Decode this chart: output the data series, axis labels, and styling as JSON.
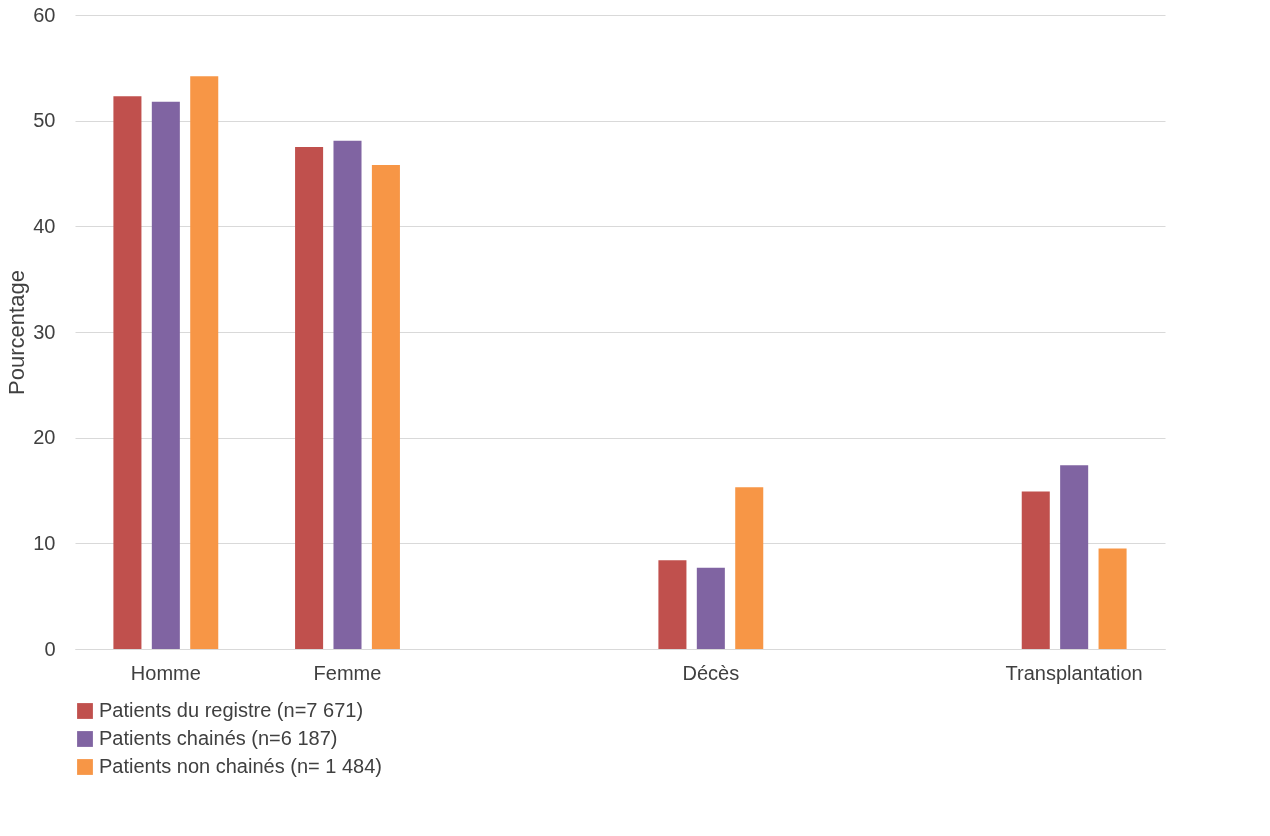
{
  "chart_data": {
    "type": "bar",
    "ylabel": "Pourcentage",
    "categories": [
      "Homme",
      "Femme",
      null,
      "Décès",
      null,
      "Transplantation"
    ],
    "series": [
      {
        "name": "Patients du registre (n=7 671)",
        "color": "#c0504d",
        "values": [
          52.3,
          47.5,
          null,
          8.4,
          null,
          14.9
        ]
      },
      {
        "name": "Patients chainés (n=6 187)",
        "color": "#8064a2",
        "values": [
          51.8,
          48.1,
          null,
          7.7,
          null,
          17.4
        ]
      },
      {
        "name": "Patients non chainés (n= 1 484)",
        "color": "#f79646",
        "values": [
          54.2,
          45.8,
          null,
          15.3,
          null,
          9.5
        ]
      }
    ],
    "ylim": [
      0,
      60
    ],
    "yticks": [
      0,
      10,
      20,
      30,
      40,
      50,
      60
    ],
    "grid": "y",
    "legend": "bottom"
  }
}
